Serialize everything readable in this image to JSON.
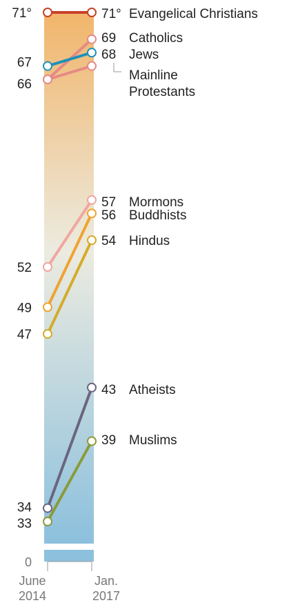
{
  "chart_data": {
    "type": "line",
    "title": "",
    "xlabel": "",
    "ylabel": "",
    "x": [
      "June 2014",
      "Jan. 2017"
    ],
    "x_labels": [
      {
        "line1": "June",
        "line2": "2014"
      },
      {
        "line1": "Jan.",
        "line2": "2017"
      }
    ],
    "ylim": [
      0,
      71
    ],
    "zero_label": "0",
    "degree_suffix": "°",
    "axis_break": true,
    "background_gradient": [
      "#f1b56a",
      "#ecebe0",
      "#8cc0dd"
    ],
    "series": [
      {
        "name": "Evangelical Christians",
        "values": [
          71,
          71
        ],
        "color": "#c8412a",
        "start_label": "71°",
        "end_label": "71°"
      },
      {
        "name": "Catholics",
        "values": [
          66,
          69
        ],
        "color": "#e58a86",
        "start_label": "66",
        "end_label": "69"
      },
      {
        "name": "Jews",
        "values": [
          67,
          68
        ],
        "color": "#1f91b8",
        "start_label": "67",
        "end_label": "68"
      },
      {
        "name": "Mainline Protestants",
        "values": [
          66,
          67
        ],
        "color": "#e58a86",
        "start_label": "",
        "end_label": ""
      },
      {
        "name": "Mormons",
        "values": [
          52,
          57
        ],
        "color": "#efa7a0",
        "start_label": "52",
        "end_label": "57"
      },
      {
        "name": "Buddhists",
        "values": [
          49,
          56
        ],
        "color": "#f0a330",
        "start_label": "49",
        "end_label": "56"
      },
      {
        "name": "Hindus",
        "values": [
          47,
          54
        ],
        "color": "#d4ab2b",
        "start_label": "47",
        "end_label": "54"
      },
      {
        "name": "Atheists",
        "values": [
          34,
          43
        ],
        "color": "#6b6580",
        "start_label": "34",
        "end_label": "43"
      },
      {
        "name": "Muslims",
        "values": [
          33,
          39
        ],
        "color": "#8a9b3b",
        "start_label": "33",
        "end_label": "39"
      }
    ],
    "series_labels": [
      {
        "text": "Evangelical Christians"
      },
      {
        "text": "Catholics"
      },
      {
        "text": "Jews"
      },
      {
        "text": "Mainline",
        "text2": "Protestants"
      },
      {
        "text": "Mormons"
      },
      {
        "text": "Buddhists"
      },
      {
        "text": "Hindus"
      },
      {
        "text": "Atheists"
      },
      {
        "text": "Muslims"
      }
    ]
  }
}
